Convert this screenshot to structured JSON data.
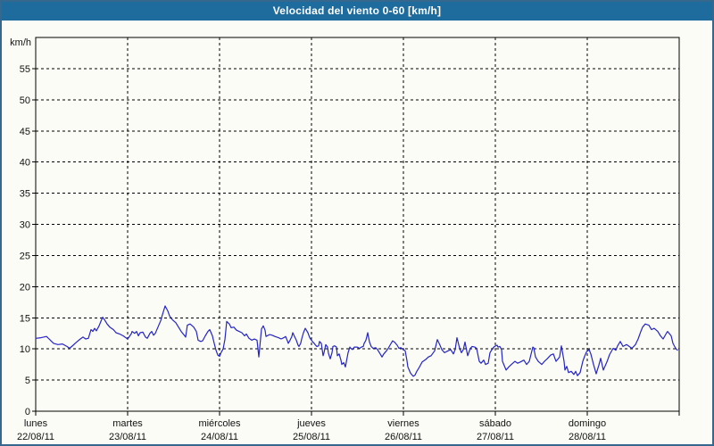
{
  "window": {
    "title": "Velocidad del viento 0-60 [km/h]"
  },
  "colors": {
    "titlebar_bg": "#1e6b9e",
    "titlebar_text": "#ffffff",
    "window_border": "#35688c",
    "page_bg": "#fcfcf6",
    "grid": "#000000",
    "axis": "#000000",
    "label": "#111111",
    "line": "#2424c8"
  },
  "chart_data": {
    "type": "line",
    "title": "Velocidad del viento 0-60 [km/h]",
    "ylabel": "km/h",
    "ylim": [
      0,
      60
    ],
    "y_ticks": [
      0,
      5,
      10,
      15,
      20,
      25,
      30,
      35,
      40,
      45,
      50,
      55
    ],
    "x_range_days": [
      0,
      7
    ],
    "grid": "dashed horizontal and vertical, black",
    "legend_position": "none",
    "x_days": [
      {
        "name": "lunes",
        "date": "22/08/11"
      },
      {
        "name": "martes",
        "date": "23/08/11"
      },
      {
        "name": "miércoles",
        "date": "24/08/11"
      },
      {
        "name": "jueves",
        "date": "25/08/11"
      },
      {
        "name": "viernes",
        "date": "26/08/11"
      },
      {
        "name": "sábado",
        "date": "27/08/11"
      },
      {
        "name": "domingo",
        "date": "28/08/11"
      }
    ],
    "series": [
      {
        "name": "Velocidad del viento",
        "unit": "km/h",
        "x_unit": "days since 22/08/11 00:00",
        "points": [
          [
            0,
            11.7
          ],
          [
            0.058,
            11.8
          ],
          [
            0.117,
            12.0
          ],
          [
            0.146,
            11.6
          ],
          [
            0.194,
            10.9
          ],
          [
            0.243,
            10.7
          ],
          [
            0.291,
            10.8
          ],
          [
            0.34,
            10.4
          ],
          [
            0.369,
            10.1
          ],
          [
            0.408,
            10.6
          ],
          [
            0.437,
            11.0
          ],
          [
            0.485,
            11.6
          ],
          [
            0.515,
            11.9
          ],
          [
            0.544,
            11.6
          ],
          [
            0.573,
            11.7
          ],
          [
            0.602,
            13.1
          ],
          [
            0.621,
            12.8
          ],
          [
            0.641,
            13.3
          ],
          [
            0.66,
            12.9
          ],
          [
            0.689,
            13.7
          ],
          [
            0.709,
            14.4
          ],
          [
            0.728,
            15.1
          ],
          [
            0.748,
            14.7
          ],
          [
            0.777,
            14.0
          ],
          [
            0.806,
            13.5
          ],
          [
            0.845,
            13.1
          ],
          [
            0.874,
            12.6
          ],
          [
            0.913,
            12.4
          ],
          [
            0.951,
            12.1
          ],
          [
            1.0,
            11.6
          ],
          [
            1.039,
            12.4
          ],
          [
            1.049,
            12.8
          ],
          [
            1.078,
            12.5
          ],
          [
            1.097,
            12.8
          ],
          [
            1.117,
            12.1
          ],
          [
            1.136,
            12.6
          ],
          [
            1.165,
            12.7
          ],
          [
            1.194,
            11.9
          ],
          [
            1.214,
            11.7
          ],
          [
            1.243,
            12.5
          ],
          [
            1.262,
            12.8
          ],
          [
            1.282,
            12.2
          ],
          [
            1.301,
            12.5
          ],
          [
            1.33,
            13.5
          ],
          [
            1.359,
            14.5
          ],
          [
            1.379,
            15.5
          ],
          [
            1.408,
            16.9
          ],
          [
            1.437,
            16.1
          ],
          [
            1.456,
            15.3
          ],
          [
            1.485,
            14.7
          ],
          [
            1.524,
            14.2
          ],
          [
            1.553,
            13.5
          ],
          [
            1.583,
            12.8
          ],
          [
            1.621,
            12.1
          ],
          [
            1.631,
            11.9
          ],
          [
            1.65,
            13.8
          ],
          [
            1.68,
            14.0
          ],
          [
            1.718,
            13.5
          ],
          [
            1.748,
            12.8
          ],
          [
            1.767,
            11.4
          ],
          [
            1.796,
            11.2
          ],
          [
            1.816,
            11.3
          ],
          [
            1.845,
            12.1
          ],
          [
            1.874,
            12.8
          ],
          [
            1.893,
            13.1
          ],
          [
            1.922,
            12.1
          ],
          [
            1.942,
            10.9
          ],
          [
            1.961,
            9.8
          ],
          [
            1.981,
            9.0
          ],
          [
            2.0,
            8.8
          ],
          [
            2.019,
            9.5
          ],
          [
            2.039,
            10.0
          ],
          [
            2.058,
            11.5
          ],
          [
            2.078,
            14.4
          ],
          [
            2.107,
            14.0
          ],
          [
            2.126,
            13.4
          ],
          [
            2.155,
            13.5
          ],
          [
            2.184,
            13.0
          ],
          [
            2.214,
            12.8
          ],
          [
            2.243,
            12.6
          ],
          [
            2.272,
            12.1
          ],
          [
            2.291,
            12.4
          ],
          [
            2.32,
            11.7
          ],
          [
            2.35,
            11.4
          ],
          [
            2.379,
            11.6
          ],
          [
            2.408,
            11.4
          ],
          [
            2.427,
            8.7
          ],
          [
            2.456,
            13.2
          ],
          [
            2.476,
            13.7
          ],
          [
            2.495,
            13.0
          ],
          [
            2.505,
            12.0
          ],
          [
            2.544,
            12.3
          ],
          [
            2.573,
            12.2
          ],
          [
            2.602,
            12.0
          ],
          [
            2.641,
            11.8
          ],
          [
            2.67,
            11.6
          ],
          [
            2.699,
            11.8
          ],
          [
            2.718,
            12.0
          ],
          [
            2.738,
            11.3
          ],
          [
            2.748,
            10.9
          ],
          [
            2.767,
            11.4
          ],
          [
            2.786,
            12.0
          ],
          [
            2.796,
            12.6
          ],
          [
            2.816,
            12.0
          ],
          [
            2.835,
            11.4
          ],
          [
            2.854,
            10.6
          ],
          [
            2.864,
            10.4
          ],
          [
            2.883,
            10.9
          ],
          [
            2.893,
            11.6
          ],
          [
            2.913,
            12.6
          ],
          [
            2.932,
            13.3
          ],
          [
            2.961,
            12.6
          ],
          [
            2.981,
            11.8
          ],
          [
            3.0,
            11.4
          ],
          [
            3.01,
            11.2
          ],
          [
            3.029,
            10.9
          ],
          [
            3.039,
            10.7
          ],
          [
            3.058,
            10.4
          ],
          [
            3.078,
            10.5
          ],
          [
            3.087,
            11.2
          ],
          [
            3.107,
            10.9
          ],
          [
            3.126,
            8.9
          ],
          [
            3.136,
            9.4
          ],
          [
            3.155,
            10.7
          ],
          [
            3.175,
            10.3
          ],
          [
            3.184,
            9.3
          ],
          [
            3.204,
            8.4
          ],
          [
            3.223,
            9.4
          ],
          [
            3.233,
            10.4
          ],
          [
            3.252,
            10.5
          ],
          [
            3.272,
            10.3
          ],
          [
            3.282,
            8.9
          ],
          [
            3.301,
            9.2
          ],
          [
            3.32,
            8.2
          ],
          [
            3.33,
            7.5
          ],
          [
            3.35,
            7.8
          ],
          [
            3.369,
            7.1
          ],
          [
            3.398,
            9.4
          ],
          [
            3.417,
            10.3
          ],
          [
            3.427,
            10.1
          ],
          [
            3.447,
            9.9
          ],
          [
            3.466,
            10.3
          ],
          [
            3.495,
            10.3
          ],
          [
            3.524,
            10.1
          ],
          [
            3.544,
            10.3
          ],
          [
            3.563,
            10.4
          ],
          [
            3.573,
            10.9
          ],
          [
            3.592,
            11.4
          ],
          [
            3.612,
            12.6
          ],
          [
            3.631,
            11.1
          ],
          [
            3.65,
            10.4
          ],
          [
            3.67,
            10.1
          ],
          [
            3.699,
            10.2
          ],
          [
            3.718,
            9.9
          ],
          [
            3.748,
            9.2
          ],
          [
            3.767,
            8.7
          ],
          [
            3.786,
            9.2
          ],
          [
            3.816,
            9.7
          ],
          [
            3.835,
            10.1
          ],
          [
            3.854,
            10.6
          ],
          [
            3.883,
            11.3
          ],
          [
            3.903,
            11.1
          ],
          [
            3.932,
            10.6
          ],
          [
            3.951,
            10.1
          ],
          [
            3.971,
            10.2
          ],
          [
            4.0,
            9.9
          ],
          [
            4.019,
            9.7
          ],
          [
            4.039,
            8.1
          ],
          [
            4.049,
            7.1
          ],
          [
            4.078,
            6.1
          ],
          [
            4.107,
            5.6
          ],
          [
            4.126,
            5.8
          ],
          [
            4.146,
            6.4
          ],
          [
            4.175,
            7.1
          ],
          [
            4.204,
            7.9
          ],
          [
            4.243,
            8.3
          ],
          [
            4.272,
            8.7
          ],
          [
            4.301,
            8.9
          ],
          [
            4.34,
            9.7
          ],
          [
            4.369,
            11.5
          ],
          [
            4.398,
            10.6
          ],
          [
            4.417,
            9.9
          ],
          [
            4.447,
            9.4
          ],
          [
            4.485,
            9.7
          ],
          [
            4.515,
            9.9
          ],
          [
            4.544,
            9.2
          ],
          [
            4.563,
            9.9
          ],
          [
            4.583,
            11.8
          ],
          [
            4.612,
            10.1
          ],
          [
            4.631,
            9.4
          ],
          [
            4.651,
            9.9
          ],
          [
            4.67,
            11.1
          ],
          [
            4.699,
            8.9
          ],
          [
            4.728,
            10.1
          ],
          [
            4.748,
            10.4
          ],
          [
            4.777,
            10.3
          ],
          [
            4.796,
            10.1
          ],
          [
            4.825,
            8.0
          ],
          [
            4.845,
            7.7
          ],
          [
            4.874,
            8.2
          ],
          [
            4.893,
            7.5
          ],
          [
            4.922,
            7.7
          ],
          [
            4.942,
            9.4
          ],
          [
            4.971,
            10.1
          ],
          [
            4.99,
            10.4
          ],
          [
            5.019,
            10.6
          ],
          [
            5.029,
            10.3
          ],
          [
            5.049,
            10.4
          ],
          [
            5.068,
            9.9
          ],
          [
            5.078,
            8.0
          ],
          [
            5.117,
            6.6
          ],
          [
            5.146,
            7.1
          ],
          [
            5.175,
            7.5
          ],
          [
            5.214,
            8.0
          ],
          [
            5.243,
            7.7
          ],
          [
            5.272,
            7.9
          ],
          [
            5.311,
            8.2
          ],
          [
            5.34,
            7.5
          ],
          [
            5.369,
            8.0
          ],
          [
            5.408,
            10.3
          ],
          [
            5.417,
            10.2
          ],
          [
            5.437,
            8.7
          ],
          [
            5.466,
            8.0
          ],
          [
            5.505,
            7.5
          ],
          [
            5.534,
            8.0
          ],
          [
            5.563,
            8.4
          ],
          [
            5.602,
            9.0
          ],
          [
            5.631,
            9.2
          ],
          [
            5.66,
            8.0
          ],
          [
            5.699,
            8.7
          ],
          [
            5.718,
            10.5
          ],
          [
            5.748,
            8.0
          ],
          [
            5.757,
            6.6
          ],
          [
            5.777,
            7.2
          ],
          [
            5.796,
            6.2
          ],
          [
            5.825,
            6.4
          ],
          [
            5.854,
            5.9
          ],
          [
            5.874,
            6.4
          ],
          [
            5.893,
            5.7
          ],
          [
            5.922,
            6.2
          ],
          [
            5.951,
            8.0
          ],
          [
            5.971,
            8.8
          ],
          [
            5.99,
            9.5
          ],
          [
            6.019,
            9.9
          ],
          [
            6.039,
            9.2
          ],
          [
            6.068,
            7.5
          ],
          [
            6.097,
            6.0
          ],
          [
            6.126,
            7.4
          ],
          [
            6.146,
            8.5
          ],
          [
            6.175,
            6.6
          ],
          [
            6.214,
            7.9
          ],
          [
            6.243,
            9.1
          ],
          [
            6.282,
            10.1
          ],
          [
            6.311,
            9.8
          ],
          [
            6.33,
            10.5
          ],
          [
            6.359,
            11.2
          ],
          [
            6.388,
            10.4
          ],
          [
            6.427,
            10.7
          ],
          [
            6.456,
            10.4
          ],
          [
            6.485,
            10.1
          ],
          [
            6.524,
            10.7
          ],
          [
            6.553,
            11.6
          ],
          [
            6.583,
            12.8
          ],
          [
            6.602,
            13.5
          ],
          [
            6.631,
            14.0
          ],
          [
            6.67,
            13.8
          ],
          [
            6.699,
            13.1
          ],
          [
            6.728,
            13.3
          ],
          [
            6.767,
            12.8
          ],
          [
            6.796,
            12.1
          ],
          [
            6.825,
            11.6
          ],
          [
            6.864,
            12.6
          ],
          [
            6.874,
            12.8
          ],
          [
            6.913,
            12.1
          ],
          [
            6.932,
            10.9
          ],
          [
            6.961,
            10.1
          ],
          [
            6.981,
            9.8
          ]
        ]
      }
    ]
  }
}
